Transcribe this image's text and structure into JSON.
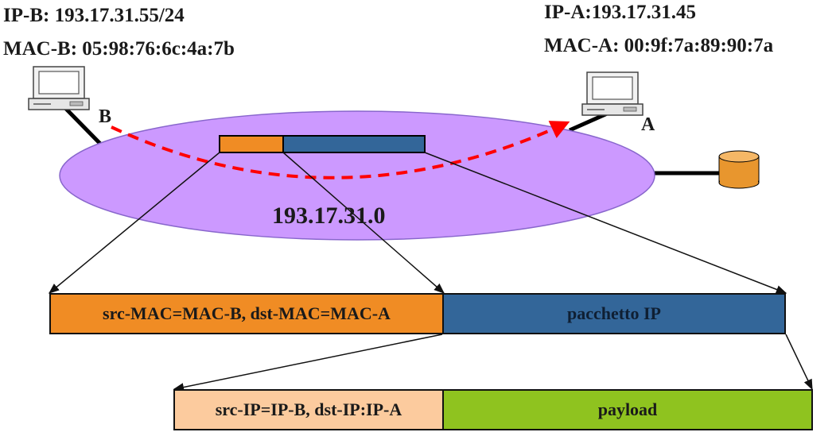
{
  "host_b": {
    "ip": "IP-B: 193.17.31.55/24",
    "mac": "MAC-B: 05:98:76:6c:4a:7b",
    "label": "B"
  },
  "host_a": {
    "ip": "IP-A:193.17.31.45",
    "mac": "MAC-A: 00:9f:7a:89:90:7a",
    "label": "A"
  },
  "network": {
    "address": "193.17.31.0"
  },
  "frame": {
    "header": "src-MAC=MAC-B, dst-MAC=MAC-A",
    "payload": "pacchetto IP"
  },
  "ip_packet": {
    "header": "src-IP=IP-B, dst-IP:IP-A",
    "payload": "payload"
  },
  "colors": {
    "network_fill": "#cc99ff",
    "frame_header": "#f08c24",
    "frame_payload": "#336699",
    "ip_header": "#fccb9e",
    "ip_payload": "#8fc31f",
    "route_arrow": "#ff0000",
    "router": "#e8962e"
  }
}
